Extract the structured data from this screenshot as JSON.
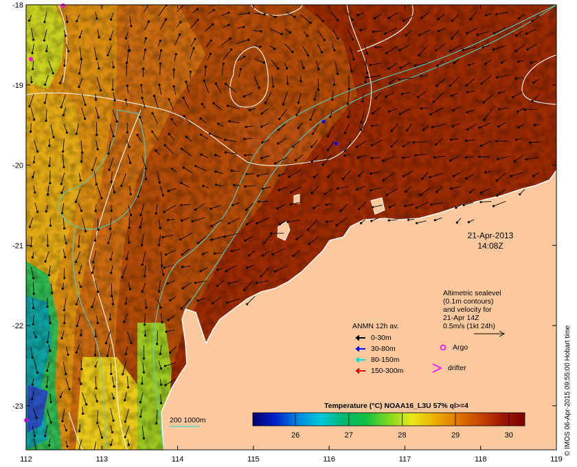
{
  "map": {
    "x_ticks": [
      "112",
      "113",
      "114",
      "115",
      "116",
      "117",
      "118",
      "119"
    ],
    "y_ticks": [
      "-18",
      "-19",
      "-20",
      "-21",
      "-22",
      "-23"
    ],
    "lon_range": [
      112,
      119
    ],
    "lat_range": [
      -23.55,
      -18
    ],
    "colors": {
      "land": "#fcc99e",
      "frame": "#000000",
      "isobath": "#4fd2c6",
      "sealevel_contour": "#ffffff"
    }
  },
  "datetime": {
    "date": "21-Apr-2013",
    "time": "14:08Z"
  },
  "altimetry_note": {
    "lines": [
      "Altimetric sealevel",
      "(0.1m contours)",
      "and velocity for",
      "21-Apr 14Z",
      "0.5m/s (1kt 24h)"
    ]
  },
  "anmn_legend": {
    "title": "ANMN 12h av.",
    "items": [
      {
        "label": "0-30m",
        "color": "#000000"
      },
      {
        "label": "30-80m",
        "color": "#0000ff"
      },
      {
        "label": "80-150m",
        "color": "#00e0e0"
      },
      {
        "label": "150-300m",
        "color": "#e00000"
      }
    ]
  },
  "platforms": {
    "argo": "Argo",
    "drifter": "drifter",
    "color": "#ff00ff"
  },
  "isobath_legend": {
    "label": "200  1000m"
  },
  "colorbar": {
    "title": "Temperature (°C) NOAA16_L3U 57% ql>=4",
    "ticks": [
      "26",
      "27",
      "28",
      "29",
      "30"
    ],
    "range": [
      25.2,
      30.3
    ],
    "stops": [
      "#00006e",
      "#0020c8",
      "#0088e0",
      "#00c8d8",
      "#00b870",
      "#10c040",
      "#80d820",
      "#e8e818",
      "#f0b000",
      "#e07800",
      "#c84800",
      "#a01800",
      "#800000"
    ]
  },
  "credit": "© IMOS 06-Apr-2015 09:55:00 Hobart time"
}
